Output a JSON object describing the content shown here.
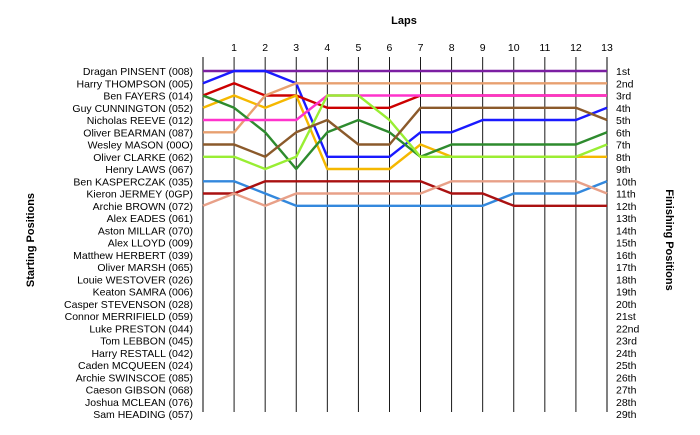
{
  "chart_data": {
    "type": "line",
    "title": "",
    "xlabel": "Laps",
    "ylabel_left": "Starting Positions",
    "ylabel_right": "Finishing Positions",
    "laps": [
      0,
      1,
      2,
      3,
      4,
      5,
      6,
      7,
      8,
      9,
      10,
      11,
      12,
      13
    ],
    "lap_tick_labels": [
      "1",
      "2",
      "3",
      "4",
      "5",
      "6",
      "7",
      "8",
      "9",
      "10",
      "11",
      "12",
      "13"
    ],
    "start_order": [
      "Dragan PINSENT (008)",
      "Harry THOMPSON (005)",
      "Ben FAYERS (014)",
      "Guy CUNNINGTON (052)",
      "Nicholas REEVE (012)",
      "Oliver BEARMAN (087)",
      "Wesley MASON (00O)",
      "Oliver CLARKE (062)",
      "Henry LAWS (067)",
      "Ben KASPERCZAK (035)",
      "Kieron JERMEY (0GP)",
      "Archie BROWN (072)",
      "Alex EADES (061)",
      "Aston MILLAR (070)",
      "Alex LLOYD (009)",
      "Matthew HERBERT (039)",
      "Oliver MARSH (065)",
      "Louie WESTOVER (026)",
      "Keaton SAMRA (006)",
      "Casper STEVENSON (028)",
      "Connor MERRIFIELD (059)",
      "Luke PRESTON (044)",
      "Tom LEBBON (045)",
      "Harry RESTALL (042)",
      "Caden MCQUEEN (024)",
      "Archie SWINSCOE (085)",
      "Caeson GIBSON (068)",
      "Joshua MCLEAN (076)",
      "Sam HEADING (057)"
    ],
    "finish_labels": [
      "1st",
      "2nd",
      "3rd",
      "4th",
      "5th",
      "6th",
      "7th",
      "8th",
      "9th",
      "10th",
      "11th",
      "12th",
      "13th",
      "14th",
      "15th",
      "16th",
      "17th",
      "18th",
      "19th",
      "20th",
      "21st",
      "22nd",
      "23rd",
      "24th",
      "25th",
      "26th",
      "27th",
      "28th",
      "29th"
    ],
    "series": [
      {
        "color": "#7b1fa2",
        "positions": [
          1,
          1,
          1,
          1,
          1,
          1,
          1,
          1,
          1,
          1,
          1,
          1,
          1,
          1
        ]
      },
      {
        "color": "#1a1aff",
        "positions": [
          2,
          1,
          1,
          2,
          8,
          8,
          8,
          6,
          6,
          5,
          5,
          5,
          5,
          4
        ]
      },
      {
        "color": "#cc0000",
        "positions": [
          3,
          2,
          3,
          3,
          4,
          4,
          4,
          3,
          3,
          3,
          3,
          3,
          3,
          3
        ]
      },
      {
        "color": "#f5b800",
        "positions": [
          4,
          3,
          4,
          3,
          9,
          9,
          9,
          7,
          8,
          8,
          8,
          8,
          8,
          8
        ]
      },
      {
        "color": "#e8a070",
        "positions": [
          6,
          6,
          3,
          2,
          2,
          2,
          2,
          2,
          2,
          2,
          2,
          2,
          2,
          2
        ]
      },
      {
        "color": "#2e8b2e",
        "positions": [
          3,
          4,
          6,
          9,
          6,
          5,
          6,
          8,
          7,
          7,
          7,
          7,
          7,
          6
        ]
      },
      {
        "color": "#ff33cc",
        "positions": [
          5,
          5,
          5,
          5,
          3,
          3,
          3,
          3,
          3,
          3,
          3,
          3,
          3,
          3
        ]
      },
      {
        "color": "#99ee33",
        "positions": [
          8,
          8,
          9,
          8,
          3,
          3,
          5,
          8,
          8,
          8,
          8,
          8,
          8,
          7
        ]
      },
      {
        "color": "#8b5a2b",
        "positions": [
          7,
          7,
          8,
          6,
          5,
          7,
          7,
          4,
          4,
          4,
          4,
          4,
          4,
          5
        ]
      },
      {
        "color": "#3388dd",
        "positions": [
          10,
          10,
          11,
          12,
          12,
          12,
          12,
          12,
          12,
          12,
          11,
          11,
          11,
          10
        ]
      },
      {
        "color": "#aa1111",
        "positions": [
          11,
          11,
          10,
          10,
          10,
          10,
          10,
          10,
          11,
          11,
          12,
          12,
          12,
          12
        ]
      },
      {
        "color": "#e8a088",
        "positions": [
          12,
          11,
          12,
          11,
          11,
          11,
          11,
          11,
          10,
          10,
          10,
          10,
          10,
          11
        ]
      }
    ]
  }
}
